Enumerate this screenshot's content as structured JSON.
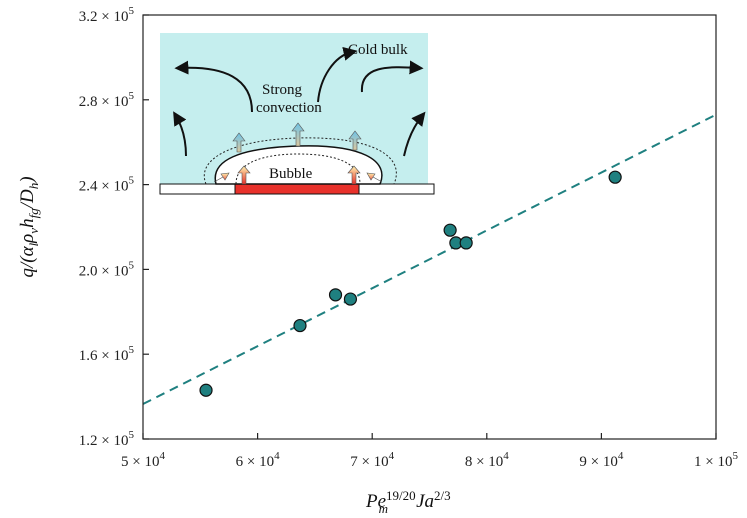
{
  "chart_data": {
    "type": "scatter",
    "title": "",
    "xlabel": "Pe_m^{19/20} Ja^{2/3}",
    "ylabel": "q/(α_l ρ_v h_fg / D_h)",
    "xlim": [
      50000,
      100000
    ],
    "ylim": [
      120000,
      320000
    ],
    "xticks": [
      50000,
      60000,
      70000,
      80000,
      90000,
      100000
    ],
    "xtick_labels": [
      {
        "mant": "5 × 10",
        "exp": "4"
      },
      {
        "mant": "6 × 10",
        "exp": "4"
      },
      {
        "mant": "7 × 10",
        "exp": "4"
      },
      {
        "mant": "8 × 10",
        "exp": "4"
      },
      {
        "mant": "9 × 10",
        "exp": "4"
      },
      {
        "mant": "1 × 10",
        "exp": "5"
      }
    ],
    "yticks": [
      120000,
      160000,
      200000,
      240000,
      280000,
      320000
    ],
    "ytick_labels": [
      {
        "mant": "1.2 × 10",
        "exp": "5"
      },
      {
        "mant": "1.6 × 10",
        "exp": "5"
      },
      {
        "mant": "2.0 × 10",
        "exp": "5"
      },
      {
        "mant": "2.4 × 10",
        "exp": "5"
      },
      {
        "mant": "2.8 × 10",
        "exp": "5"
      },
      {
        "mant": "3.2 × 10",
        "exp": "5"
      }
    ],
    "series": [
      {
        "marker": "circle",
        "color": "#1f8080",
        "x": [
          55500,
          63700,
          66800,
          68100,
          76800,
          77300,
          78200,
          91200
        ],
        "y": [
          143000,
          173500,
          188000,
          186000,
          218500,
          212500,
          212500,
          243500
        ]
      }
    ],
    "fit_line": {
      "style": "dashed",
      "color": "#1f8080",
      "x": [
        50000,
        100000
      ],
      "y": [
        136500,
        273000
      ]
    },
    "grid": false,
    "legend": "none"
  },
  "inset": {
    "label_cold_bulk": "Cold bulk",
    "label_strong": "Strong",
    "label_convection": "convection",
    "label_bubble": "Bubble",
    "background_color": "#c5eeee",
    "heater_color": "#e8312b"
  }
}
